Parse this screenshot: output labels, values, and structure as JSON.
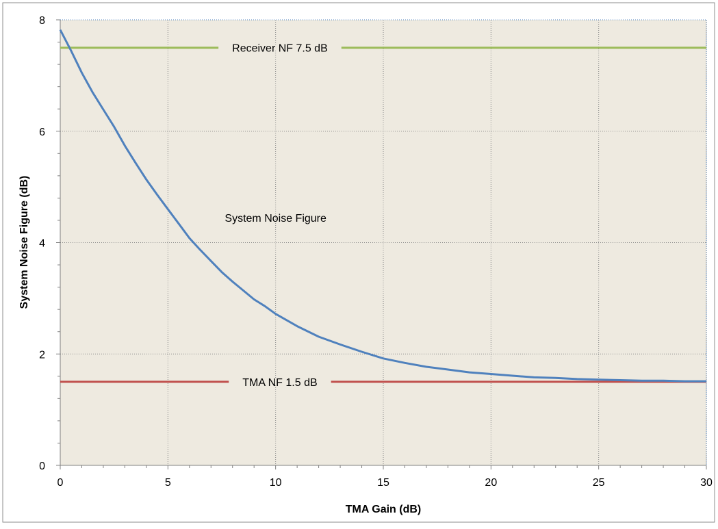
{
  "chart_data": {
    "type": "line",
    "title": "",
    "xlabel": "TMA Gain (dB)",
    "ylabel": "System Noise Figure (dB)",
    "xlim": [
      0,
      30
    ],
    "ylim": [
      0,
      8
    ],
    "x_ticks": [
      "0",
      "5",
      "10",
      "15",
      "20",
      "25",
      "30"
    ],
    "y_ticks": [
      "0",
      "2",
      "4",
      "6",
      "8"
    ],
    "grid": true,
    "legend": "none",
    "colors": {
      "plot_background": "#EEEAE0",
      "system_nf": "#4F81BD",
      "receiver_nf": "#9BBB59",
      "tma_nf": "#C0504D",
      "grid": "#8C8C8C"
    },
    "series": [
      {
        "name": "System Noise Figure",
        "x": [
          0,
          0.5,
          1,
          1.5,
          2,
          2.5,
          3,
          3.5,
          4,
          4.5,
          5,
          5.5,
          6,
          6.5,
          7,
          7.5,
          8,
          8.5,
          9,
          9.5,
          10,
          11,
          12,
          13,
          14,
          15,
          16,
          17,
          18,
          19,
          20,
          21,
          22,
          23,
          24,
          25,
          26,
          27,
          28,
          29,
          30
        ],
        "values": [
          7.82,
          7.45,
          7.05,
          6.7,
          6.39,
          6.08,
          5.74,
          5.43,
          5.13,
          4.86,
          4.6,
          4.34,
          4.08,
          3.87,
          3.67,
          3.47,
          3.3,
          3.14,
          2.98,
          2.86,
          2.72,
          2.5,
          2.31,
          2.17,
          2.04,
          1.92,
          1.84,
          1.77,
          1.72,
          1.67,
          1.64,
          1.61,
          1.58,
          1.57,
          1.55,
          1.54,
          1.53,
          1.52,
          1.52,
          1.51,
          1.51
        ]
      },
      {
        "name": "Receiver NF 7.5 dB",
        "x": [
          0,
          30
        ],
        "values": [
          7.5,
          7.5
        ]
      },
      {
        "name": "TMA NF 1.5 dB",
        "x": [
          0,
          30
        ],
        "values": [
          1.5,
          1.5
        ]
      }
    ],
    "annotations": [
      {
        "text": "Receiver NF 7.5 dB",
        "x": 10.2,
        "y": 7.5
      },
      {
        "text": "System Noise Figure",
        "x": 10.0,
        "y": 4.45
      },
      {
        "text": "TMA NF 1.5 dB",
        "x": 10.2,
        "y": 1.5
      }
    ]
  }
}
